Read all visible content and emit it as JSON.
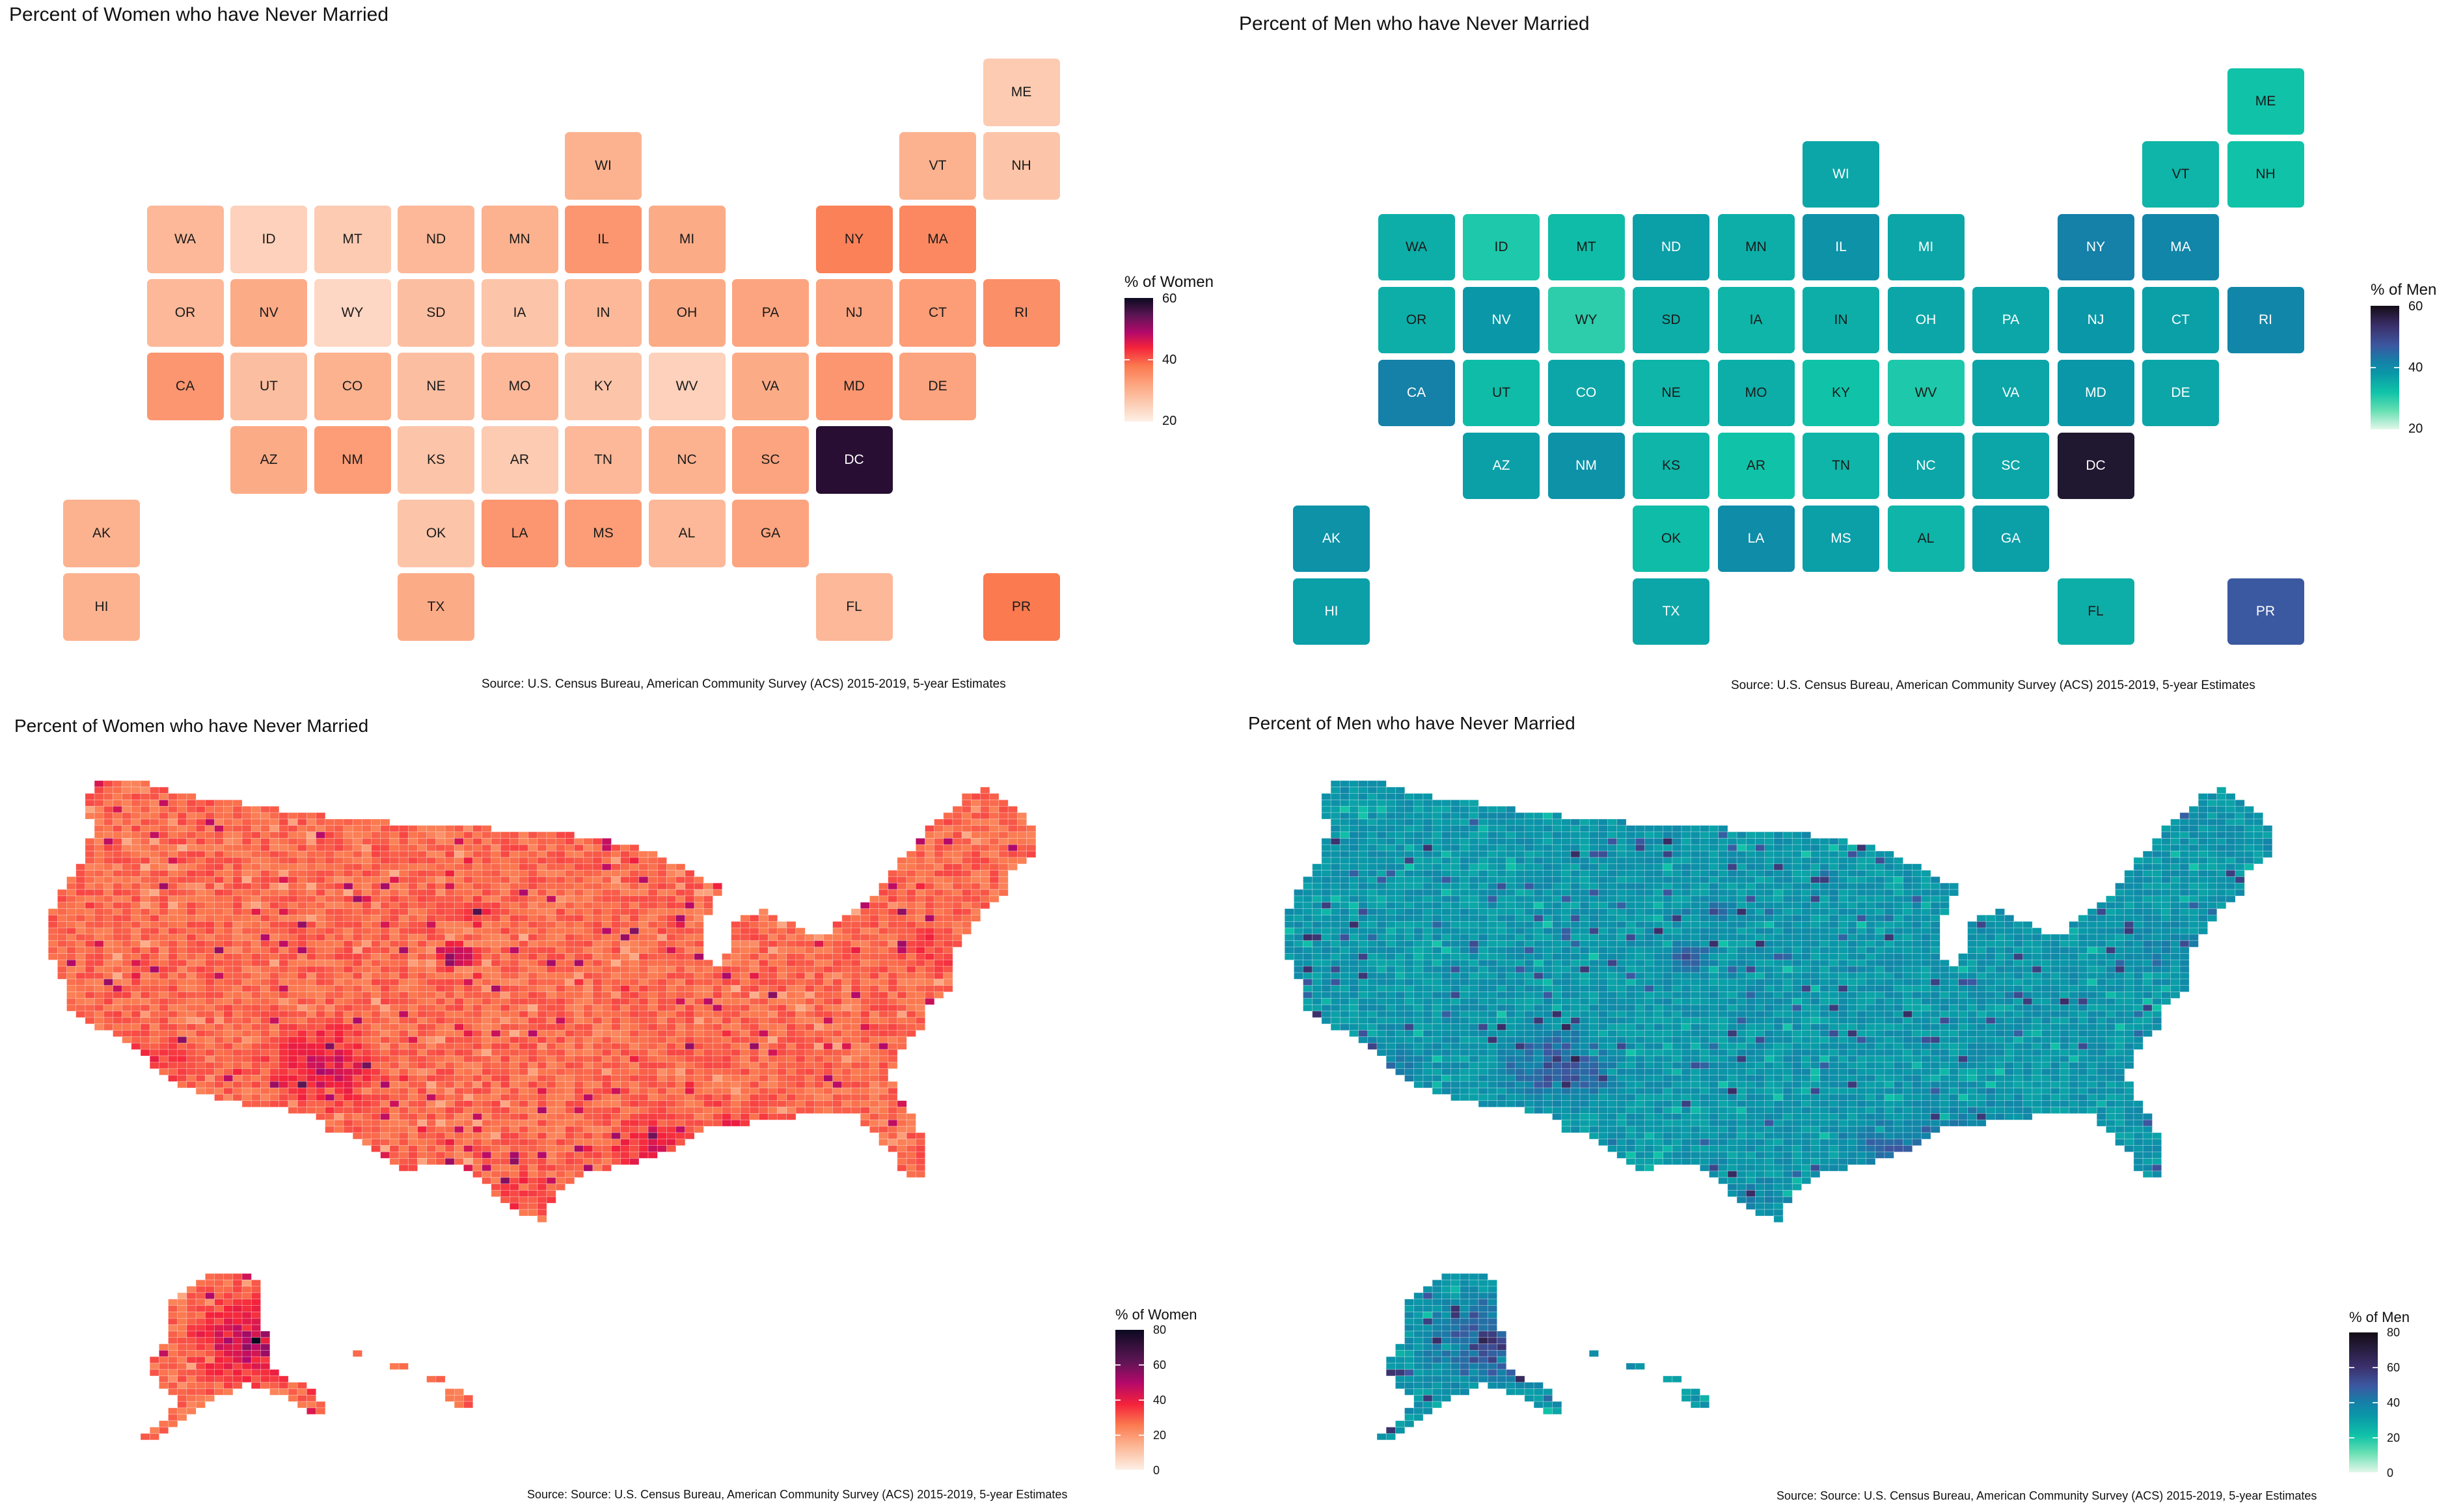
{
  "panels": {
    "tile_women": {
      "title": "Percent of Women who have Never Married",
      "source": "Source: U.S. Census Bureau, American Community Survey (ACS) 2015-2019, 5-year Estimates",
      "legend": {
        "title": "% of Women",
        "ticks": [
          "60",
          "40",
          "20"
        ]
      }
    },
    "tile_men": {
      "title": "Percent of Men who have Never Married",
      "source": "Source: U.S. Census Bureau, American Community Survey (ACS) 2015-2019, 5-year Estimates",
      "legend": {
        "title": "% of Men",
        "ticks": [
          "60",
          "40",
          "20"
        ]
      }
    },
    "county_women": {
      "title": "Percent of Women who have Never Married",
      "source": "Source: Source: U.S. Census Bureau, American Community Survey (ACS) 2015-2019, 5-year Estimates",
      "legend": {
        "title": "% of Women",
        "ticks": [
          "80",
          "60",
          "40",
          "20",
          "0"
        ]
      }
    },
    "county_men": {
      "title": "Percent of Men who have Never Married",
      "source": "Source: Source: U.S. Census Bureau, American Community Survey (ACS) 2015-2019, 5-year Estimates",
      "legend": {
        "title": "% of Men",
        "ticks": [
          "80",
          "60",
          "40",
          "20",
          "0"
        ]
      }
    }
  },
  "colors": {
    "women_scale": [
      "#fdf0e6",
      "#fcb28f",
      "#fb7a50",
      "#f4223b",
      "#b4096a",
      "#5c1554",
      "#0b0a20"
    ],
    "men_scale": [
      "#e3f7ea",
      "#67dfb2",
      "#10c3a8",
      "#0a98a8",
      "#1580a8",
      "#3c57a0",
      "#3b2f6a",
      "#140c16"
    ]
  },
  "chart_data": [
    {
      "type": "heatmap",
      "subtype": "tile-grid-map",
      "title": "Percent of Women who have Never Married",
      "legend_title": "% of Women",
      "range": [
        20,
        60
      ],
      "states": [
        {
          "abbr": "ME",
          "col": 11,
          "row": 0,
          "value": 26
        },
        {
          "abbr": "WI",
          "col": 6,
          "row": 1,
          "value": 30
        },
        {
          "abbr": "VT",
          "col": 10,
          "row": 1,
          "value": 30
        },
        {
          "abbr": "NH",
          "col": 11,
          "row": 1,
          "value": 27
        },
        {
          "abbr": "WA",
          "col": 1,
          "row": 2,
          "value": 29
        },
        {
          "abbr": "ID",
          "col": 2,
          "row": 2,
          "value": 25
        },
        {
          "abbr": "MT",
          "col": 3,
          "row": 2,
          "value": 26
        },
        {
          "abbr": "ND",
          "col": 4,
          "row": 2,
          "value": 29
        },
        {
          "abbr": "MN",
          "col": 5,
          "row": 2,
          "value": 30
        },
        {
          "abbr": "IL",
          "col": 6,
          "row": 2,
          "value": 34
        },
        {
          "abbr": "MI",
          "col": 7,
          "row": 2,
          "value": 31
        },
        {
          "abbr": "NY",
          "col": 9,
          "row": 2,
          "value": 37
        },
        {
          "abbr": "MA",
          "col": 10,
          "row": 2,
          "value": 36
        },
        {
          "abbr": "OR",
          "col": 1,
          "row": 3,
          "value": 29
        },
        {
          "abbr": "NV",
          "col": 2,
          "row": 3,
          "value": 31
        },
        {
          "abbr": "WY",
          "col": 3,
          "row": 3,
          "value": 24
        },
        {
          "abbr": "SD",
          "col": 4,
          "row": 3,
          "value": 28
        },
        {
          "abbr": "IA",
          "col": 5,
          "row": 3,
          "value": 27
        },
        {
          "abbr": "IN",
          "col": 6,
          "row": 3,
          "value": 29
        },
        {
          "abbr": "OH",
          "col": 7,
          "row": 3,
          "value": 31
        },
        {
          "abbr": "PA",
          "col": 8,
          "row": 3,
          "value": 32
        },
        {
          "abbr": "NJ",
          "col": 9,
          "row": 3,
          "value": 32
        },
        {
          "abbr": "CT",
          "col": 10,
          "row": 3,
          "value": 33
        },
        {
          "abbr": "RI",
          "col": 11,
          "row": 3,
          "value": 35
        },
        {
          "abbr": "CA",
          "col": 1,
          "row": 4,
          "value": 34
        },
        {
          "abbr": "UT",
          "col": 2,
          "row": 4,
          "value": 28
        },
        {
          "abbr": "CO",
          "col": 3,
          "row": 4,
          "value": 30
        },
        {
          "abbr": "NE",
          "col": 4,
          "row": 4,
          "value": 28
        },
        {
          "abbr": "MO",
          "col": 5,
          "row": 4,
          "value": 29
        },
        {
          "abbr": "KY",
          "col": 6,
          "row": 4,
          "value": 27
        },
        {
          "abbr": "WV",
          "col": 7,
          "row": 4,
          "value": 25
        },
        {
          "abbr": "VA",
          "col": 8,
          "row": 4,
          "value": 31
        },
        {
          "abbr": "MD",
          "col": 9,
          "row": 4,
          "value": 34
        },
        {
          "abbr": "DE",
          "col": 10,
          "row": 4,
          "value": 32
        },
        {
          "abbr": "AZ",
          "col": 2,
          "row": 5,
          "value": 31
        },
        {
          "abbr": "NM",
          "col": 3,
          "row": 5,
          "value": 33
        },
        {
          "abbr": "KS",
          "col": 4,
          "row": 5,
          "value": 27
        },
        {
          "abbr": "AR",
          "col": 5,
          "row": 5,
          "value": 26
        },
        {
          "abbr": "TN",
          "col": 6,
          "row": 5,
          "value": 29
        },
        {
          "abbr": "NC",
          "col": 7,
          "row": 5,
          "value": 30
        },
        {
          "abbr": "SC",
          "col": 8,
          "row": 5,
          "value": 32
        },
        {
          "abbr": "DC",
          "col": 9,
          "row": 5,
          "value": 58
        },
        {
          "abbr": "AK",
          "col": 0,
          "row": 6,
          "value": 30
        },
        {
          "abbr": "OK",
          "col": 4,
          "row": 6,
          "value": 27
        },
        {
          "abbr": "LA",
          "col": 5,
          "row": 6,
          "value": 34
        },
        {
          "abbr": "MS",
          "col": 6,
          "row": 6,
          "value": 33
        },
        {
          "abbr": "AL",
          "col": 7,
          "row": 6,
          "value": 29
        },
        {
          "abbr": "GA",
          "col": 8,
          "row": 6,
          "value": 32
        },
        {
          "abbr": "HI",
          "col": 0,
          "row": 7,
          "value": 30
        },
        {
          "abbr": "TX",
          "col": 4,
          "row": 7,
          "value": 31
        },
        {
          "abbr": "FL",
          "col": 9,
          "row": 7,
          "value": 29
        },
        {
          "abbr": "PR",
          "col": 11,
          "row": 7,
          "value": 38
        }
      ]
    },
    {
      "type": "heatmap",
      "subtype": "tile-grid-map",
      "title": "Percent of Men who have Never Married",
      "legend_title": "% of Men",
      "range": [
        20,
        60
      ],
      "states": [
        {
          "abbr": "ME",
          "col": 11,
          "row": 0,
          "value": 32
        },
        {
          "abbr": "WI",
          "col": 6,
          "row": 1,
          "value": 36
        },
        {
          "abbr": "VT",
          "col": 10,
          "row": 1,
          "value": 34
        },
        {
          "abbr": "NH",
          "col": 11,
          "row": 1,
          "value": 32
        },
        {
          "abbr": "WA",
          "col": 1,
          "row": 2,
          "value": 35
        },
        {
          "abbr": "ID",
          "col": 2,
          "row": 2,
          "value": 31
        },
        {
          "abbr": "MT",
          "col": 3,
          "row": 2,
          "value": 33
        },
        {
          "abbr": "ND",
          "col": 4,
          "row": 2,
          "value": 37
        },
        {
          "abbr": "MN",
          "col": 5,
          "row": 2,
          "value": 35
        },
        {
          "abbr": "IL",
          "col": 6,
          "row": 2,
          "value": 39
        },
        {
          "abbr": "MI",
          "col": 7,
          "row": 2,
          "value": 36
        },
        {
          "abbr": "NY",
          "col": 9,
          "row": 2,
          "value": 42
        },
        {
          "abbr": "MA",
          "col": 10,
          "row": 2,
          "value": 41
        },
        {
          "abbr": "OR",
          "col": 1,
          "row": 3,
          "value": 35
        },
        {
          "abbr": "NV",
          "col": 2,
          "row": 3,
          "value": 38
        },
        {
          "abbr": "WY",
          "col": 3,
          "row": 3,
          "value": 30
        },
        {
          "abbr": "SD",
          "col": 4,
          "row": 3,
          "value": 35
        },
        {
          "abbr": "IA",
          "col": 5,
          "row": 3,
          "value": 34
        },
        {
          "abbr": "IN",
          "col": 6,
          "row": 3,
          "value": 35
        },
        {
          "abbr": "OH",
          "col": 7,
          "row": 3,
          "value": 36
        },
        {
          "abbr": "PA",
          "col": 8,
          "row": 3,
          "value": 36
        },
        {
          "abbr": "NJ",
          "col": 9,
          "row": 3,
          "value": 38
        },
        {
          "abbr": "CT",
          "col": 10,
          "row": 3,
          "value": 37
        },
        {
          "abbr": "RI",
          "col": 11,
          "row": 3,
          "value": 41
        },
        {
          "abbr": "CA",
          "col": 1,
          "row": 4,
          "value": 42
        },
        {
          "abbr": "UT",
          "col": 2,
          "row": 4,
          "value": 33
        },
        {
          "abbr": "CO",
          "col": 3,
          "row": 4,
          "value": 36
        },
        {
          "abbr": "NE",
          "col": 4,
          "row": 4,
          "value": 34
        },
        {
          "abbr": "MO",
          "col": 5,
          "row": 4,
          "value": 35
        },
        {
          "abbr": "KY",
          "col": 6,
          "row": 4,
          "value": 32
        },
        {
          "abbr": "WV",
          "col": 7,
          "row": 4,
          "value": 31
        },
        {
          "abbr": "VA",
          "col": 8,
          "row": 4,
          "value": 36
        },
        {
          "abbr": "MD",
          "col": 9,
          "row": 4,
          "value": 38
        },
        {
          "abbr": "DE",
          "col": 10,
          "row": 4,
          "value": 36
        },
        {
          "abbr": "AZ",
          "col": 2,
          "row": 5,
          "value": 37
        },
        {
          "abbr": "NM",
          "col": 3,
          "row": 5,
          "value": 39
        },
        {
          "abbr": "KS",
          "col": 4,
          "row": 5,
          "value": 34
        },
        {
          "abbr": "AR",
          "col": 5,
          "row": 5,
          "value": 32
        },
        {
          "abbr": "TN",
          "col": 6,
          "row": 5,
          "value": 34
        },
        {
          "abbr": "NC",
          "col": 7,
          "row": 5,
          "value": 36
        },
        {
          "abbr": "SC",
          "col": 8,
          "row": 5,
          "value": 36
        },
        {
          "abbr": "DC",
          "col": 9,
          "row": 5,
          "value": 58
        },
        {
          "abbr": "AK",
          "col": 0,
          "row": 6,
          "value": 39
        },
        {
          "abbr": "OK",
          "col": 4,
          "row": 6,
          "value": 33
        },
        {
          "abbr": "LA",
          "col": 5,
          "row": 6,
          "value": 40
        },
        {
          "abbr": "MS",
          "col": 6,
          "row": 6,
          "value": 37
        },
        {
          "abbr": "AL",
          "col": 7,
          "row": 6,
          "value": 34
        },
        {
          "abbr": "GA",
          "col": 8,
          "row": 6,
          "value": 37
        },
        {
          "abbr": "HI",
          "col": 0,
          "row": 7,
          "value": 37
        },
        {
          "abbr": "TX",
          "col": 4,
          "row": 7,
          "value": 36
        },
        {
          "abbr": "FL",
          "col": 9,
          "row": 7,
          "value": 35
        },
        {
          "abbr": "PR",
          "col": 11,
          "row": 7,
          "value": 47
        }
      ]
    },
    {
      "type": "heatmap",
      "subtype": "county-choropleth",
      "title": "Percent of Women who have Never Married",
      "legend_title": "% of Women",
      "range": [
        0,
        80
      ],
      "typical_value": 28,
      "notes": "County-level choropleth of contiguous US, Alaska and Hawaii; most counties 20-35%, higher values (40-70%) in the Southwest, Mississippi Delta, Black Belt South, Alaska and parts of the Dakotas."
    },
    {
      "type": "heatmap",
      "subtype": "county-choropleth",
      "title": "Percent of Men who have Never Married",
      "legend_title": "% of Men",
      "range": [
        0,
        80
      ],
      "typical_value": 33,
      "notes": "County-level choropleth of contiguous US, Alaska and Hawaii; most counties 25-40%, higher values (45-75%) in the Southwest, Mississippi Delta, Black Belt South, Alaska and parts of the Dakotas."
    }
  ]
}
